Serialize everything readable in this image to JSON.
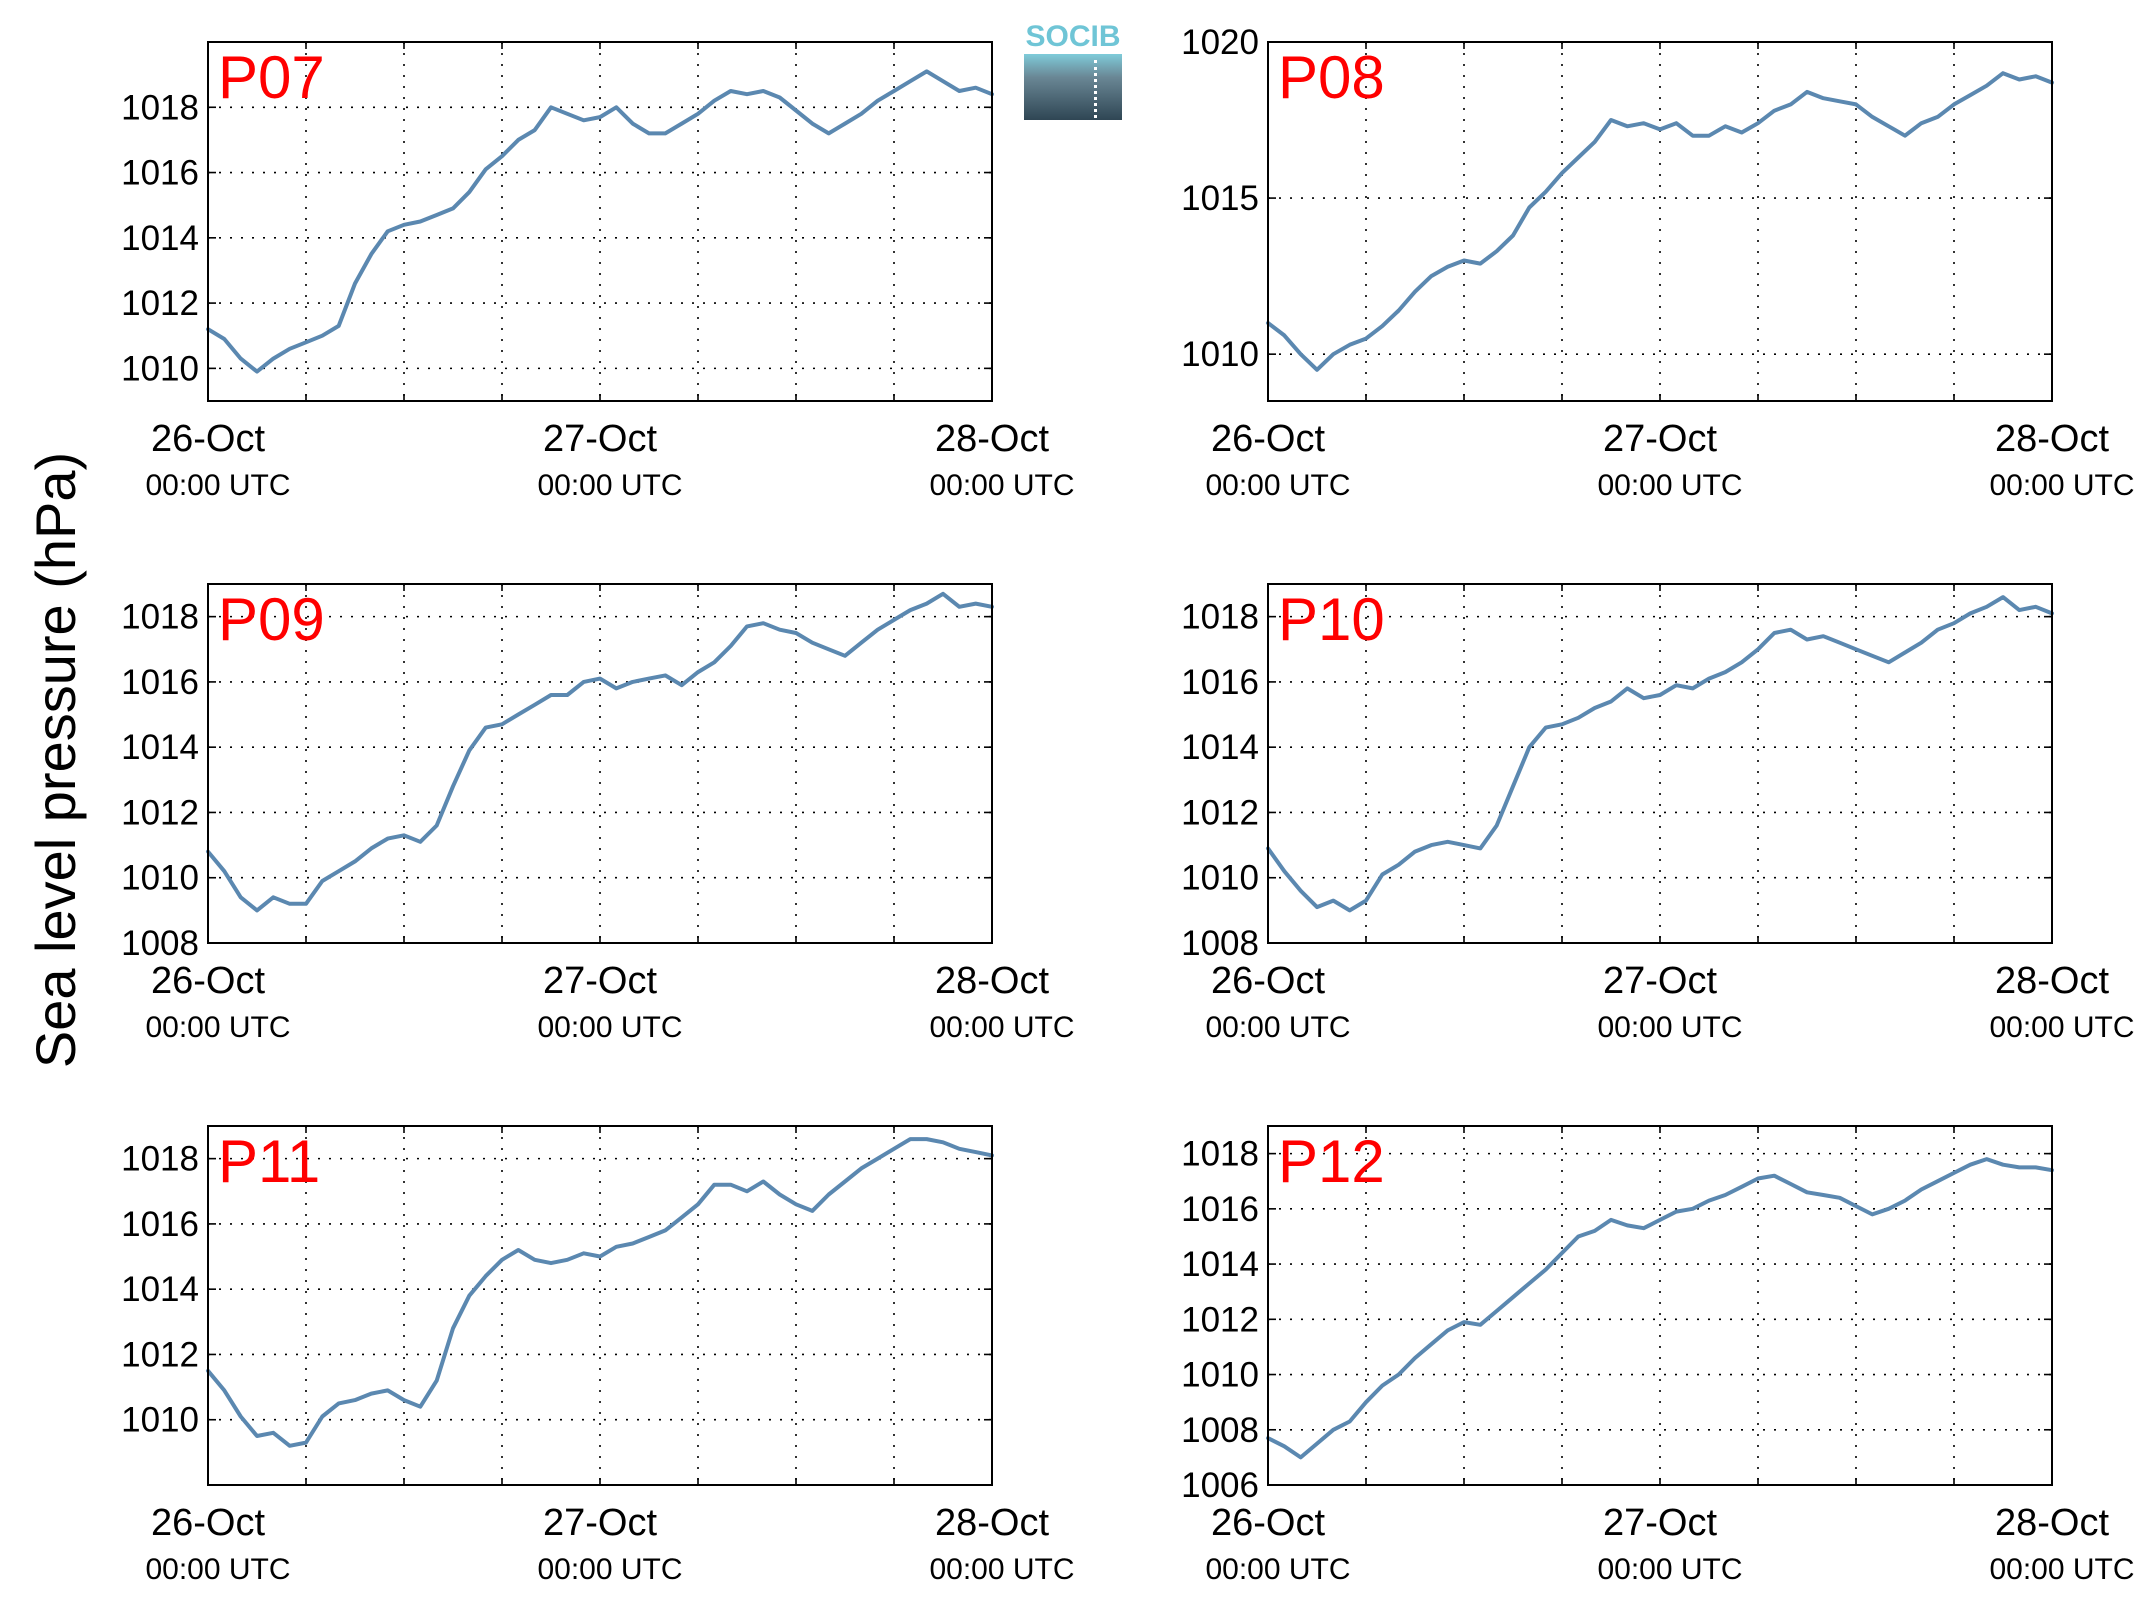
{
  "figure": {
    "ylabel": "Sea level pressure (hPa)",
    "logo_text": "SOCIB",
    "x_tick_dates": [
      "26-Oct",
      "27-Oct",
      "28-Oct"
    ],
    "x_tick_times": [
      "00:00 UTC",
      "00:00 UTC",
      "00:00 UTC"
    ],
    "colors": {
      "line": "#5b88b0",
      "panel_label": "#ff0000",
      "axis": "#000000"
    }
  },
  "chart_data": [
    {
      "type": "line",
      "panel_label": "P07",
      "xlabel": "",
      "ylabel": "Sea level pressure (hPa)",
      "xlim": [
        0,
        48
      ],
      "ylim": [
        1009,
        1020
      ],
      "yticks": [
        1010,
        1012,
        1014,
        1016,
        1018
      ],
      "xticks": [
        0,
        24,
        48
      ],
      "xtick_labels": [
        "26-Oct 00:00 UTC",
        "27-Oct 00:00 UTC",
        "28-Oct 00:00 UTC"
      ],
      "grid": true,
      "x": [
        0,
        1,
        2,
        3,
        4,
        5,
        6,
        7,
        8,
        9,
        10,
        11,
        12,
        13,
        14,
        15,
        16,
        17,
        18,
        19,
        20,
        21,
        22,
        23,
        24,
        25,
        26,
        27,
        28,
        29,
        30,
        31,
        32,
        33,
        34,
        35,
        36,
        37,
        38,
        39,
        40,
        41,
        42,
        43,
        44,
        45,
        46,
        47,
        48
      ],
      "values": [
        1011.2,
        1010.9,
        1010.3,
        1009.9,
        1010.3,
        1010.6,
        1010.8,
        1011.0,
        1011.3,
        1012.6,
        1013.5,
        1014.2,
        1014.4,
        1014.5,
        1014.7,
        1014.9,
        1015.4,
        1016.1,
        1016.5,
        1017.0,
        1017.3,
        1018.0,
        1017.8,
        1017.6,
        1017.7,
        1018.0,
        1017.5,
        1017.2,
        1017.2,
        1017.5,
        1017.8,
        1018.2,
        1018.5,
        1018.4,
        1018.5,
        1018.3,
        1017.9,
        1017.5,
        1017.2,
        1017.5,
        1017.8,
        1018.2,
        1018.5,
        1018.8,
        1019.1,
        1018.8,
        1018.5,
        1018.6,
        1018.4
      ],
      "series": [
        {
          "color": "#5b88b0"
        }
      ]
    },
    {
      "type": "line",
      "panel_label": "P08",
      "xlabel": "",
      "ylabel": "Sea level pressure (hPa)",
      "xlim": [
        0,
        48
      ],
      "ylim": [
        1008.5,
        1020
      ],
      "yticks": [
        1010,
        1015,
        1020
      ],
      "xticks": [
        0,
        24,
        48
      ],
      "xtick_labels": [
        "26-Oct 00:00 UTC",
        "27-Oct 00:00 UTC",
        "28-Oct 00:00 UTC"
      ],
      "grid": true,
      "x": [
        0,
        1,
        2,
        3,
        4,
        5,
        6,
        7,
        8,
        9,
        10,
        11,
        12,
        13,
        14,
        15,
        16,
        17,
        18,
        19,
        20,
        21,
        22,
        23,
        24,
        25,
        26,
        27,
        28,
        29,
        30,
        31,
        32,
        33,
        34,
        35,
        36,
        37,
        38,
        39,
        40,
        41,
        42,
        43,
        44,
        45,
        46,
        47,
        48
      ],
      "values": [
        1011.0,
        1010.6,
        1010.0,
        1009.5,
        1010.0,
        1010.3,
        1010.5,
        1010.9,
        1011.4,
        1012.0,
        1012.5,
        1012.8,
        1013.0,
        1012.9,
        1013.3,
        1013.8,
        1014.7,
        1015.2,
        1015.8,
        1016.3,
        1016.8,
        1017.5,
        1017.3,
        1017.4,
        1017.2,
        1017.4,
        1017.0,
        1017.0,
        1017.3,
        1017.1,
        1017.4,
        1017.8,
        1018.0,
        1018.4,
        1018.2,
        1018.1,
        1018.0,
        1017.6,
        1017.3,
        1017.0,
        1017.4,
        1017.6,
        1018.0,
        1018.3,
        1018.6,
        1019.0,
        1018.8,
        1018.9,
        1018.7
      ],
      "series": [
        {
          "color": "#5b88b0"
        }
      ]
    },
    {
      "type": "line",
      "panel_label": "P09",
      "xlabel": "",
      "ylabel": "Sea level pressure (hPa)",
      "xlim": [
        0,
        48
      ],
      "ylim": [
        1008,
        1019
      ],
      "yticks": [
        1008,
        1010,
        1012,
        1014,
        1016,
        1018
      ],
      "xticks": [
        0,
        24,
        48
      ],
      "xtick_labels": [
        "26-Oct 00:00 UTC",
        "27-Oct 00:00 UTC",
        "28-Oct 00:00 UTC"
      ],
      "grid": true,
      "x": [
        0,
        1,
        2,
        3,
        4,
        5,
        6,
        7,
        8,
        9,
        10,
        11,
        12,
        13,
        14,
        15,
        16,
        17,
        18,
        19,
        20,
        21,
        22,
        23,
        24,
        25,
        26,
        27,
        28,
        29,
        30,
        31,
        32,
        33,
        34,
        35,
        36,
        37,
        38,
        39,
        40,
        41,
        42,
        43,
        44,
        45,
        46,
        47,
        48
      ],
      "values": [
        1010.8,
        1010.2,
        1009.4,
        1009.0,
        1009.4,
        1009.2,
        1009.2,
        1009.9,
        1010.2,
        1010.5,
        1010.9,
        1011.2,
        1011.3,
        1011.1,
        1011.6,
        1012.8,
        1013.9,
        1014.6,
        1014.7,
        1015.0,
        1015.3,
        1015.6,
        1015.6,
        1016.0,
        1016.1,
        1015.8,
        1016.0,
        1016.1,
        1016.2,
        1015.9,
        1016.3,
        1016.6,
        1017.1,
        1017.7,
        1017.8,
        1017.6,
        1017.5,
        1017.2,
        1017.0,
        1016.8,
        1017.2,
        1017.6,
        1017.9,
        1018.2,
        1018.4,
        1018.7,
        1018.3,
        1018.4,
        1018.3
      ],
      "series": [
        {
          "color": "#5b88b0"
        }
      ]
    },
    {
      "type": "line",
      "panel_label": "P10",
      "xlabel": "",
      "ylabel": "Sea level pressure (hPa)",
      "xlim": [
        0,
        48
      ],
      "ylim": [
        1008,
        1019
      ],
      "yticks": [
        1008,
        1010,
        1012,
        1014,
        1016,
        1018
      ],
      "xticks": [
        0,
        24,
        48
      ],
      "xtick_labels": [
        "26-Oct 00:00 UTC",
        "27-Oct 00:00 UTC",
        "28-Oct 00:00 UTC"
      ],
      "grid": true,
      "x": [
        0,
        1,
        2,
        3,
        4,
        5,
        6,
        7,
        8,
        9,
        10,
        11,
        12,
        13,
        14,
        15,
        16,
        17,
        18,
        19,
        20,
        21,
        22,
        23,
        24,
        25,
        26,
        27,
        28,
        29,
        30,
        31,
        32,
        33,
        34,
        35,
        36,
        37,
        38,
        39,
        40,
        41,
        42,
        43,
        44,
        45,
        46,
        47,
        48
      ],
      "values": [
        1010.9,
        1010.2,
        1009.6,
        1009.1,
        1009.3,
        1009.0,
        1009.3,
        1010.1,
        1010.4,
        1010.8,
        1011.0,
        1011.1,
        1011.0,
        1010.9,
        1011.6,
        1012.8,
        1014.0,
        1014.6,
        1014.7,
        1014.9,
        1015.2,
        1015.4,
        1015.8,
        1015.5,
        1015.6,
        1015.9,
        1015.8,
        1016.1,
        1016.3,
        1016.6,
        1017.0,
        1017.5,
        1017.6,
        1017.3,
        1017.4,
        1017.2,
        1017.0,
        1016.8,
        1016.6,
        1016.9,
        1017.2,
        1017.6,
        1017.8,
        1018.1,
        1018.3,
        1018.6,
        1018.2,
        1018.3,
        1018.1
      ],
      "series": [
        {
          "color": "#5b88b0"
        }
      ]
    },
    {
      "type": "line",
      "panel_label": "P11",
      "xlabel": "",
      "ylabel": "Sea level pressure (hPa)",
      "xlim": [
        0,
        48
      ],
      "ylim": [
        1008,
        1019
      ],
      "yticks": [
        1010,
        1012,
        1014,
        1016,
        1018
      ],
      "xticks": [
        0,
        24,
        48
      ],
      "xtick_labels": [
        "26-Oct 00:00 UTC",
        "27-Oct 00:00 UTC",
        "28-Oct 00:00 UTC"
      ],
      "grid": true,
      "x": [
        0,
        1,
        2,
        3,
        4,
        5,
        6,
        7,
        8,
        9,
        10,
        11,
        12,
        13,
        14,
        15,
        16,
        17,
        18,
        19,
        20,
        21,
        22,
        23,
        24,
        25,
        26,
        27,
        28,
        29,
        30,
        31,
        32,
        33,
        34,
        35,
        36,
        37,
        38,
        39,
        40,
        41,
        42,
        43,
        44,
        45,
        46,
        47,
        48
      ],
      "values": [
        1011.5,
        1010.9,
        1010.1,
        1009.5,
        1009.6,
        1009.2,
        1009.3,
        1010.1,
        1010.5,
        1010.6,
        1010.8,
        1010.9,
        1010.6,
        1010.4,
        1011.2,
        1012.8,
        1013.8,
        1014.4,
        1014.9,
        1015.2,
        1014.9,
        1014.8,
        1014.9,
        1015.1,
        1015.0,
        1015.3,
        1015.4,
        1015.6,
        1015.8,
        1016.2,
        1016.6,
        1017.2,
        1017.2,
        1017.0,
        1017.3,
        1016.9,
        1016.6,
        1016.4,
        1016.9,
        1017.3,
        1017.7,
        1018.0,
        1018.3,
        1018.6,
        1018.6,
        1018.5,
        1018.3,
        1018.2,
        1018.1
      ],
      "series": [
        {
          "color": "#5b88b0"
        }
      ]
    },
    {
      "type": "line",
      "panel_label": "P12",
      "xlabel": "",
      "ylabel": "Sea level pressure (hPa)",
      "xlim": [
        0,
        48
      ],
      "ylim": [
        1006,
        1019
      ],
      "yticks": [
        1006,
        1008,
        1010,
        1012,
        1014,
        1016,
        1018
      ],
      "xticks": [
        0,
        24,
        48
      ],
      "xtick_labels": [
        "26-Oct 00:00 UTC",
        "27-Oct 00:00 UTC",
        "28-Oct 00:00 UTC"
      ],
      "grid": true,
      "x": [
        0,
        1,
        2,
        3,
        4,
        5,
        6,
        7,
        8,
        9,
        10,
        11,
        12,
        13,
        14,
        15,
        16,
        17,
        18,
        19,
        20,
        21,
        22,
        23,
        24,
        25,
        26,
        27,
        28,
        29,
        30,
        31,
        32,
        33,
        34,
        35,
        36,
        37,
        38,
        39,
        40,
        41,
        42,
        43,
        44,
        45,
        46,
        47,
        48
      ],
      "values": [
        1007.7,
        1007.4,
        1007.0,
        1007.5,
        1008.0,
        1008.3,
        1009.0,
        1009.6,
        1010.0,
        1010.6,
        1011.1,
        1011.6,
        1011.9,
        1011.8,
        1012.3,
        1012.8,
        1013.3,
        1013.8,
        1014.4,
        1015.0,
        1015.2,
        1015.6,
        1015.4,
        1015.3,
        1015.6,
        1015.9,
        1016.0,
        1016.3,
        1016.5,
        1016.8,
        1017.1,
        1017.2,
        1016.9,
        1016.6,
        1016.5,
        1016.4,
        1016.1,
        1015.8,
        1016.0,
        1016.3,
        1016.7,
        1017.0,
        1017.3,
        1017.6,
        1017.8,
        1017.6,
        1017.5,
        1017.5,
        1017.4
      ],
      "series": [
        {
          "color": "#5b88b0"
        }
      ]
    }
  ]
}
